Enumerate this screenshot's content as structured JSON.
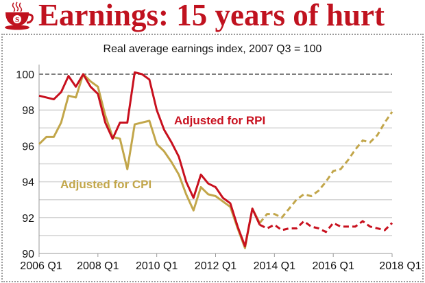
{
  "header": {
    "title": "Earnings: 15 years of hurt",
    "logo": "S"
  },
  "chart_data": {
    "type": "line",
    "title": "Real average earnings index, 2007 Q3 = 100",
    "xlabel": "",
    "ylabel": "",
    "x_start": "2006 Q1",
    "frequency": "quarterly",
    "x_ticks": [
      "2006 Q1",
      "2008 Q1",
      "2010 Q1",
      "2012 Q1",
      "2014 Q1",
      "2016 Q1",
      "2018 Q1"
    ],
    "y_ticks": [
      "90",
      "92",
      "94",
      "96",
      "98",
      "100"
    ],
    "ylim": [
      90,
      100.5
    ],
    "grid": true,
    "reference_line": 100,
    "forecast_from_index": 30,
    "series": [
      {
        "name": "Adjusted for RPI",
        "color": "#c8101e",
        "values": [
          98.8,
          98.7,
          98.6,
          99.0,
          99.9,
          99.3,
          100.0,
          99.3,
          98.9,
          97.3,
          96.4,
          97.3,
          97.3,
          100.1,
          100.0,
          99.7,
          98.0,
          96.9,
          96.2,
          95.4,
          94.0,
          93.1,
          94.4,
          93.9,
          93.7,
          93.1,
          92.8,
          91.5,
          90.4,
          92.5,
          91.6,
          91.4,
          91.6,
          91.3,
          91.4,
          91.4,
          91.8,
          91.5,
          91.4,
          91.2,
          91.7,
          91.5,
          91.5,
          91.5,
          91.8,
          91.5,
          91.4,
          91.3,
          91.7
        ]
      },
      {
        "name": "Adjusted for CPI",
        "color": "#c2a64a",
        "values": [
          96.1,
          96.5,
          96.5,
          97.3,
          98.8,
          98.7,
          100.0,
          99.6,
          99.3,
          97.7,
          96.5,
          96.4,
          94.7,
          97.2,
          97.3,
          97.4,
          96.1,
          95.7,
          95.1,
          94.4,
          93.3,
          92.4,
          93.7,
          93.3,
          93.2,
          92.9,
          92.6,
          91.4,
          90.3,
          92.5,
          91.7,
          92.2,
          92.2,
          92.0,
          92.5,
          93.0,
          93.3,
          93.2,
          93.5,
          94.0,
          94.6,
          94.7,
          95.2,
          95.8,
          96.3,
          96.2,
          96.6,
          97.3,
          97.9
        ]
      }
    ]
  }
}
